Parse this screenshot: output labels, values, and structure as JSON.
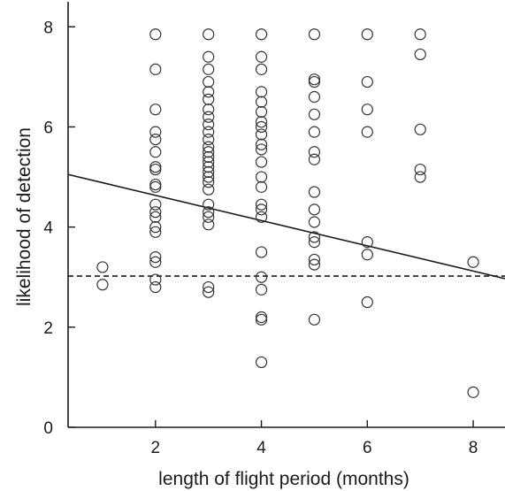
{
  "chart_data": {
    "type": "scatter",
    "xlabel": "length of flight period (months)",
    "ylabel": "likelihood of detection",
    "xlim": [
      0.35,
      8.6
    ],
    "ylim": [
      0,
      8.5
    ],
    "x_ticks": [
      2,
      4,
      6,
      8
    ],
    "y_ticks": [
      0,
      2,
      4,
      6,
      8
    ],
    "grid": false,
    "points": [
      {
        "x": 1,
        "y": 3.2
      },
      {
        "x": 1,
        "y": 2.85
      },
      {
        "x": 2,
        "y": 7.85
      },
      {
        "x": 2,
        "y": 7.15
      },
      {
        "x": 2,
        "y": 6.35
      },
      {
        "x": 2,
        "y": 5.9
      },
      {
        "x": 2,
        "y": 5.75
      },
      {
        "x": 2,
        "y": 5.5
      },
      {
        "x": 2,
        "y": 5.2
      },
      {
        "x": 2,
        "y": 5.15
      },
      {
        "x": 2,
        "y": 4.85
      },
      {
        "x": 2,
        "y": 4.8
      },
      {
        "x": 2,
        "y": 4.45
      },
      {
        "x": 2,
        "y": 4.3
      },
      {
        "x": 2,
        "y": 4.2
      },
      {
        "x": 2,
        "y": 4.0
      },
      {
        "x": 2,
        "y": 3.9
      },
      {
        "x": 2,
        "y": 3.4
      },
      {
        "x": 2,
        "y": 3.3
      },
      {
        "x": 2,
        "y": 2.95
      },
      {
        "x": 2,
        "y": 2.8
      },
      {
        "x": 3,
        "y": 7.85
      },
      {
        "x": 3,
        "y": 7.4
      },
      {
        "x": 3,
        "y": 7.15
      },
      {
        "x": 3,
        "y": 6.9
      },
      {
        "x": 3,
        "y": 6.7
      },
      {
        "x": 3,
        "y": 6.55
      },
      {
        "x": 3,
        "y": 6.35
      },
      {
        "x": 3,
        "y": 6.2
      },
      {
        "x": 3,
        "y": 6.05
      },
      {
        "x": 3,
        "y": 5.9
      },
      {
        "x": 3,
        "y": 5.75
      },
      {
        "x": 3,
        "y": 5.6
      },
      {
        "x": 3,
        "y": 5.5
      },
      {
        "x": 3,
        "y": 5.4
      },
      {
        "x": 3,
        "y": 5.3
      },
      {
        "x": 3,
        "y": 5.2
      },
      {
        "x": 3,
        "y": 5.1
      },
      {
        "x": 3,
        "y": 5.0
      },
      {
        "x": 3,
        "y": 4.9
      },
      {
        "x": 3,
        "y": 4.75
      },
      {
        "x": 3,
        "y": 4.45
      },
      {
        "x": 3,
        "y": 4.3
      },
      {
        "x": 3,
        "y": 4.2
      },
      {
        "x": 3,
        "y": 4.05
      },
      {
        "x": 3,
        "y": 2.8
      },
      {
        "x": 3,
        "y": 2.7
      },
      {
        "x": 4,
        "y": 7.85
      },
      {
        "x": 4,
        "y": 7.4
      },
      {
        "x": 4,
        "y": 7.15
      },
      {
        "x": 4,
        "y": 6.7
      },
      {
        "x": 4,
        "y": 6.5
      },
      {
        "x": 4,
        "y": 6.3
      },
      {
        "x": 4,
        "y": 6.1
      },
      {
        "x": 4,
        "y": 6.0
      },
      {
        "x": 4,
        "y": 5.85
      },
      {
        "x": 4,
        "y": 5.65
      },
      {
        "x": 4,
        "y": 5.55
      },
      {
        "x": 4,
        "y": 5.3
      },
      {
        "x": 4,
        "y": 5.0
      },
      {
        "x": 4,
        "y": 4.8
      },
      {
        "x": 4,
        "y": 4.45
      },
      {
        "x": 4,
        "y": 4.35
      },
      {
        "x": 4,
        "y": 4.2
      },
      {
        "x": 4,
        "y": 3.5
      },
      {
        "x": 4,
        "y": 3.0
      },
      {
        "x": 4,
        "y": 2.75
      },
      {
        "x": 4,
        "y": 2.2
      },
      {
        "x": 4,
        "y": 2.15
      },
      {
        "x": 4,
        "y": 1.3
      },
      {
        "x": 5,
        "y": 7.85
      },
      {
        "x": 5,
        "y": 6.95
      },
      {
        "x": 5,
        "y": 6.9
      },
      {
        "x": 5,
        "y": 6.6
      },
      {
        "x": 5,
        "y": 6.25
      },
      {
        "x": 5,
        "y": 5.9
      },
      {
        "x": 5,
        "y": 5.5
      },
      {
        "x": 5,
        "y": 5.35
      },
      {
        "x": 5,
        "y": 4.7
      },
      {
        "x": 5,
        "y": 4.35
      },
      {
        "x": 5,
        "y": 4.1
      },
      {
        "x": 5,
        "y": 3.8
      },
      {
        "x": 5,
        "y": 3.7
      },
      {
        "x": 5,
        "y": 3.35
      },
      {
        "x": 5,
        "y": 3.25
      },
      {
        "x": 5,
        "y": 2.15
      },
      {
        "x": 6,
        "y": 7.85
      },
      {
        "x": 6,
        "y": 6.9
      },
      {
        "x": 6,
        "y": 6.35
      },
      {
        "x": 6,
        "y": 5.9
      },
      {
        "x": 6,
        "y": 3.7
      },
      {
        "x": 6,
        "y": 3.45
      },
      {
        "x": 6,
        "y": 2.5
      },
      {
        "x": 7,
        "y": 7.85
      },
      {
        "x": 7,
        "y": 7.45
      },
      {
        "x": 7,
        "y": 5.95
      },
      {
        "x": 7,
        "y": 5.15
      },
      {
        "x": 7,
        "y": 5.0
      },
      {
        "x": 8,
        "y": 3.3
      },
      {
        "x": 8,
        "y": 0.7
      }
    ],
    "lines": [
      {
        "style": "solid",
        "x": [
          0.35,
          8.6
        ],
        "y": [
          5.05,
          2.97
        ]
      },
      {
        "style": "dashed",
        "x": [
          0.35,
          8.6
        ],
        "y": [
          3.02,
          3.02
        ]
      }
    ]
  }
}
